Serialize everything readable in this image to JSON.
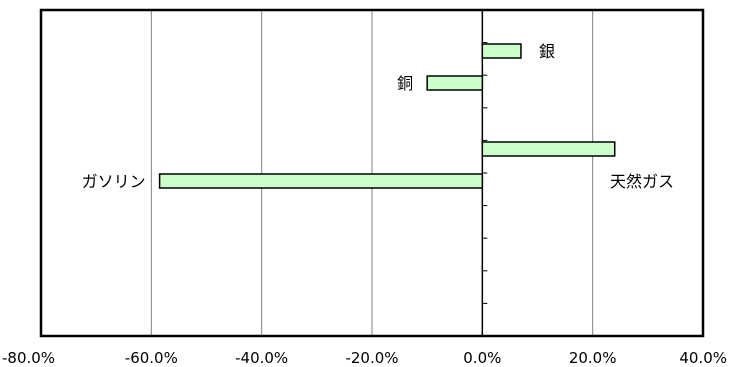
{
  "chart_data": {
    "type": "bar",
    "orientation": "horizontal",
    "xlim": [
      -0.8,
      0.4
    ],
    "xticks": [
      -0.8,
      -0.6,
      -0.4,
      -0.2,
      0.0,
      0.2,
      0.4
    ],
    "xtick_labels": [
      "-80.0%",
      "-60.0%",
      "-40.0%",
      "-20.0%",
      "0.0%",
      "20.0%",
      "40.0%"
    ],
    "grid": true,
    "legend": "none",
    "bars": [
      {
        "label": "銀",
        "value": 0.07,
        "label_side": "right"
      },
      {
        "label": "銅",
        "value": -0.1,
        "label_side": "left"
      },
      {
        "label": "天然ガス",
        "value": 0.24,
        "label_side": "right"
      },
      {
        "label": "ガソリン",
        "value": -0.585,
        "label_side": "left"
      }
    ],
    "colors": {
      "bar_fill": "#ccffcc",
      "bar_stroke": "#000000",
      "grid": "#808080",
      "axis": "#000000"
    }
  }
}
